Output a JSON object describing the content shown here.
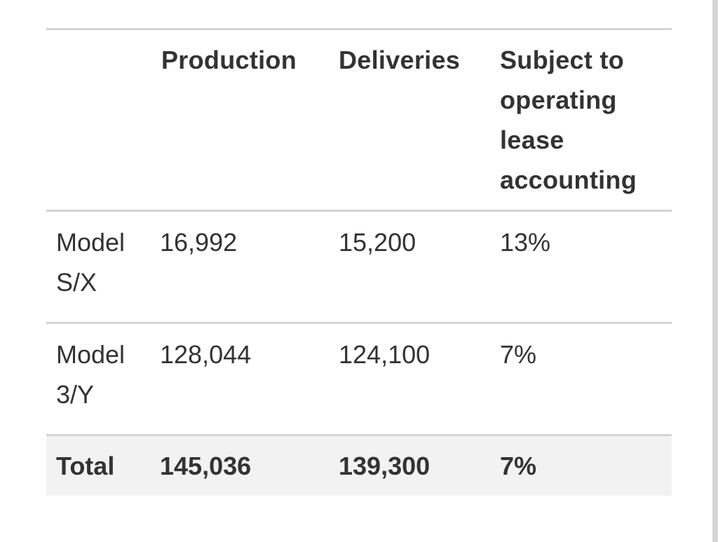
{
  "table": {
    "headers": [
      "",
      "Production",
      "Deliveries",
      "Subject to operating lease accounting"
    ],
    "rows": [
      {
        "label": "Model S/X",
        "production": "16,992",
        "deliveries": "15,200",
        "lease": "13%"
      },
      {
        "label": "Model 3/Y",
        "production": "128,044",
        "deliveries": "124,100",
        "lease": "7%"
      }
    ],
    "total": {
      "label": "Total",
      "production": "145,036",
      "deliveries": "139,300",
      "lease": "7%"
    }
  }
}
